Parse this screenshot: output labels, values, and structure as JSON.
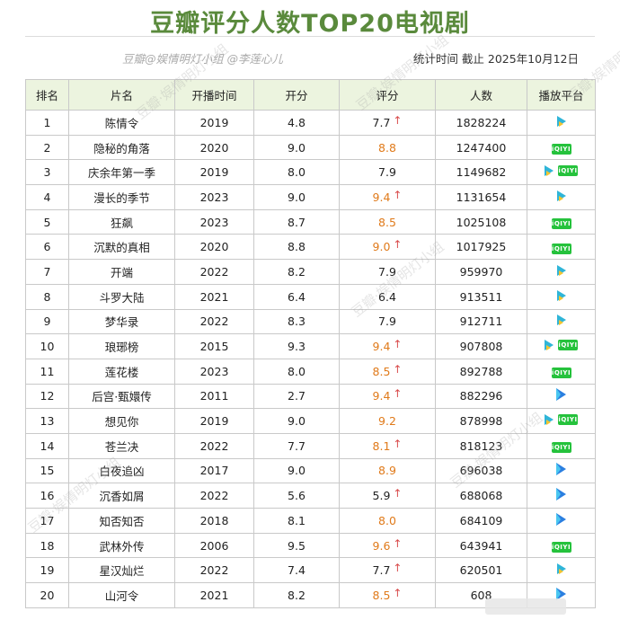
{
  "title": "豆瓣评分人数TOP20电视剧",
  "source_credit": "豆瓣@娱情明灯小组 @李莲心儿",
  "stat_time": "统计时间  截止 2025年10月12日",
  "headers": [
    "排名",
    "片名",
    "开播时间",
    "开分",
    "评分",
    "人数",
    "播放平台"
  ],
  "rows": [
    {
      "rank": "1",
      "name": "陈情令",
      "year": "2019",
      "open": "4.8",
      "score": "7.7",
      "hl": false,
      "up": true,
      "count": "1828224",
      "platforms": [
        "tencent"
      ]
    },
    {
      "rank": "2",
      "name": "隐秘的角落",
      "year": "2020",
      "open": "9.0",
      "score": "8.8",
      "hl": true,
      "up": false,
      "count": "1247400",
      "platforms": [
        "iqiyi"
      ]
    },
    {
      "rank": "3",
      "name": "庆余年第一季",
      "year": "2019",
      "open": "8.0",
      "score": "7.9",
      "hl": false,
      "up": false,
      "count": "1149682",
      "platforms": [
        "tencent",
        "iqiyi"
      ]
    },
    {
      "rank": "4",
      "name": "漫长的季节",
      "year": "2023",
      "open": "9.0",
      "score": "9.4",
      "hl": true,
      "up": true,
      "count": "1131654",
      "platforms": [
        "tencent"
      ]
    },
    {
      "rank": "5",
      "name": "狂飙",
      "year": "2023",
      "open": "8.7",
      "score": "8.5",
      "hl": true,
      "up": false,
      "count": "1025108",
      "platforms": [
        "iqiyi"
      ]
    },
    {
      "rank": "6",
      "name": "沉默的真相",
      "year": "2020",
      "open": "8.8",
      "score": "9.0",
      "hl": true,
      "up": true,
      "count": "1017925",
      "platforms": [
        "iqiyi"
      ]
    },
    {
      "rank": "7",
      "name": "开端",
      "year": "2022",
      "open": "8.2",
      "score": "7.9",
      "hl": false,
      "up": false,
      "count": "959970",
      "platforms": [
        "tencent"
      ]
    },
    {
      "rank": "8",
      "name": "斗罗大陆",
      "year": "2021",
      "open": "6.4",
      "score": "6.4",
      "hl": false,
      "up": false,
      "count": "913511",
      "platforms": [
        "tencent"
      ]
    },
    {
      "rank": "9",
      "name": "梦华录",
      "year": "2022",
      "open": "8.3",
      "score": "7.9",
      "hl": false,
      "up": false,
      "count": "912711",
      "platforms": [
        "tencent"
      ]
    },
    {
      "rank": "10",
      "name": "琅琊榜",
      "year": "2015",
      "open": "9.3",
      "score": "9.4",
      "hl": true,
      "up": true,
      "count": "907808",
      "platforms": [
        "tencent",
        "iqiyi"
      ]
    },
    {
      "rank": "11",
      "name": "莲花楼",
      "year": "2023",
      "open": "8.0",
      "score": "8.5",
      "hl": true,
      "up": true,
      "count": "892788",
      "platforms": [
        "iqiyi"
      ]
    },
    {
      "rank": "12",
      "name": "后宫·甄嬛传",
      "year": "2011",
      "open": "2.7",
      "score": "9.4",
      "hl": true,
      "up": true,
      "count": "882296",
      "platforms": [
        "youku"
      ]
    },
    {
      "rank": "13",
      "name": "想见你",
      "year": "2019",
      "open": "9.0",
      "score": "9.2",
      "hl": true,
      "up": false,
      "count": "878998",
      "platforms": [
        "tencent",
        "iqiyi"
      ]
    },
    {
      "rank": "14",
      "name": "苍兰决",
      "year": "2022",
      "open": "7.7",
      "score": "8.1",
      "hl": true,
      "up": true,
      "count": "818123",
      "platforms": [
        "iqiyi"
      ]
    },
    {
      "rank": "15",
      "name": "白夜追凶",
      "year": "2017",
      "open": "9.0",
      "score": "8.9",
      "hl": true,
      "up": false,
      "count": "696038",
      "platforms": [
        "youku"
      ]
    },
    {
      "rank": "16",
      "name": "沉香如屑",
      "year": "2022",
      "open": "5.6",
      "score": "5.9",
      "hl": false,
      "up": true,
      "count": "688068",
      "platforms": [
        "youku"
      ]
    },
    {
      "rank": "17",
      "name": "知否知否",
      "year": "2018",
      "open": "8.1",
      "score": "8.0",
      "hl": true,
      "up": false,
      "count": "684109",
      "platforms": [
        "youku"
      ]
    },
    {
      "rank": "18",
      "name": "武林外传",
      "year": "2006",
      "open": "9.5",
      "score": "9.6",
      "hl": true,
      "up": true,
      "count": "643941",
      "platforms": [
        "iqiyi"
      ]
    },
    {
      "rank": "19",
      "name": "星汉灿烂",
      "year": "2022",
      "open": "7.4",
      "score": "7.7",
      "hl": false,
      "up": true,
      "count": "620501",
      "platforms": [
        "tencent"
      ]
    },
    {
      "rank": "20",
      "name": "山河令",
      "year": "2021",
      "open": "8.2",
      "score": "8.5",
      "hl": true,
      "up": true,
      "count": "608",
      "platforms": [
        "youku"
      ]
    }
  ],
  "watermark_text": "豆瓣·娱情明灯小组",
  "colors": {
    "title": "#5a8a3c",
    "header_bg": "#ecf4df",
    "highlight_score": "#e07a1a",
    "arrow": "#d84a4a"
  },
  "icons": {
    "tencent": "tencent-video-icon",
    "iqiyi": "iqiyi-icon",
    "youku": "youku-icon",
    "up": "up-arrow-icon"
  }
}
